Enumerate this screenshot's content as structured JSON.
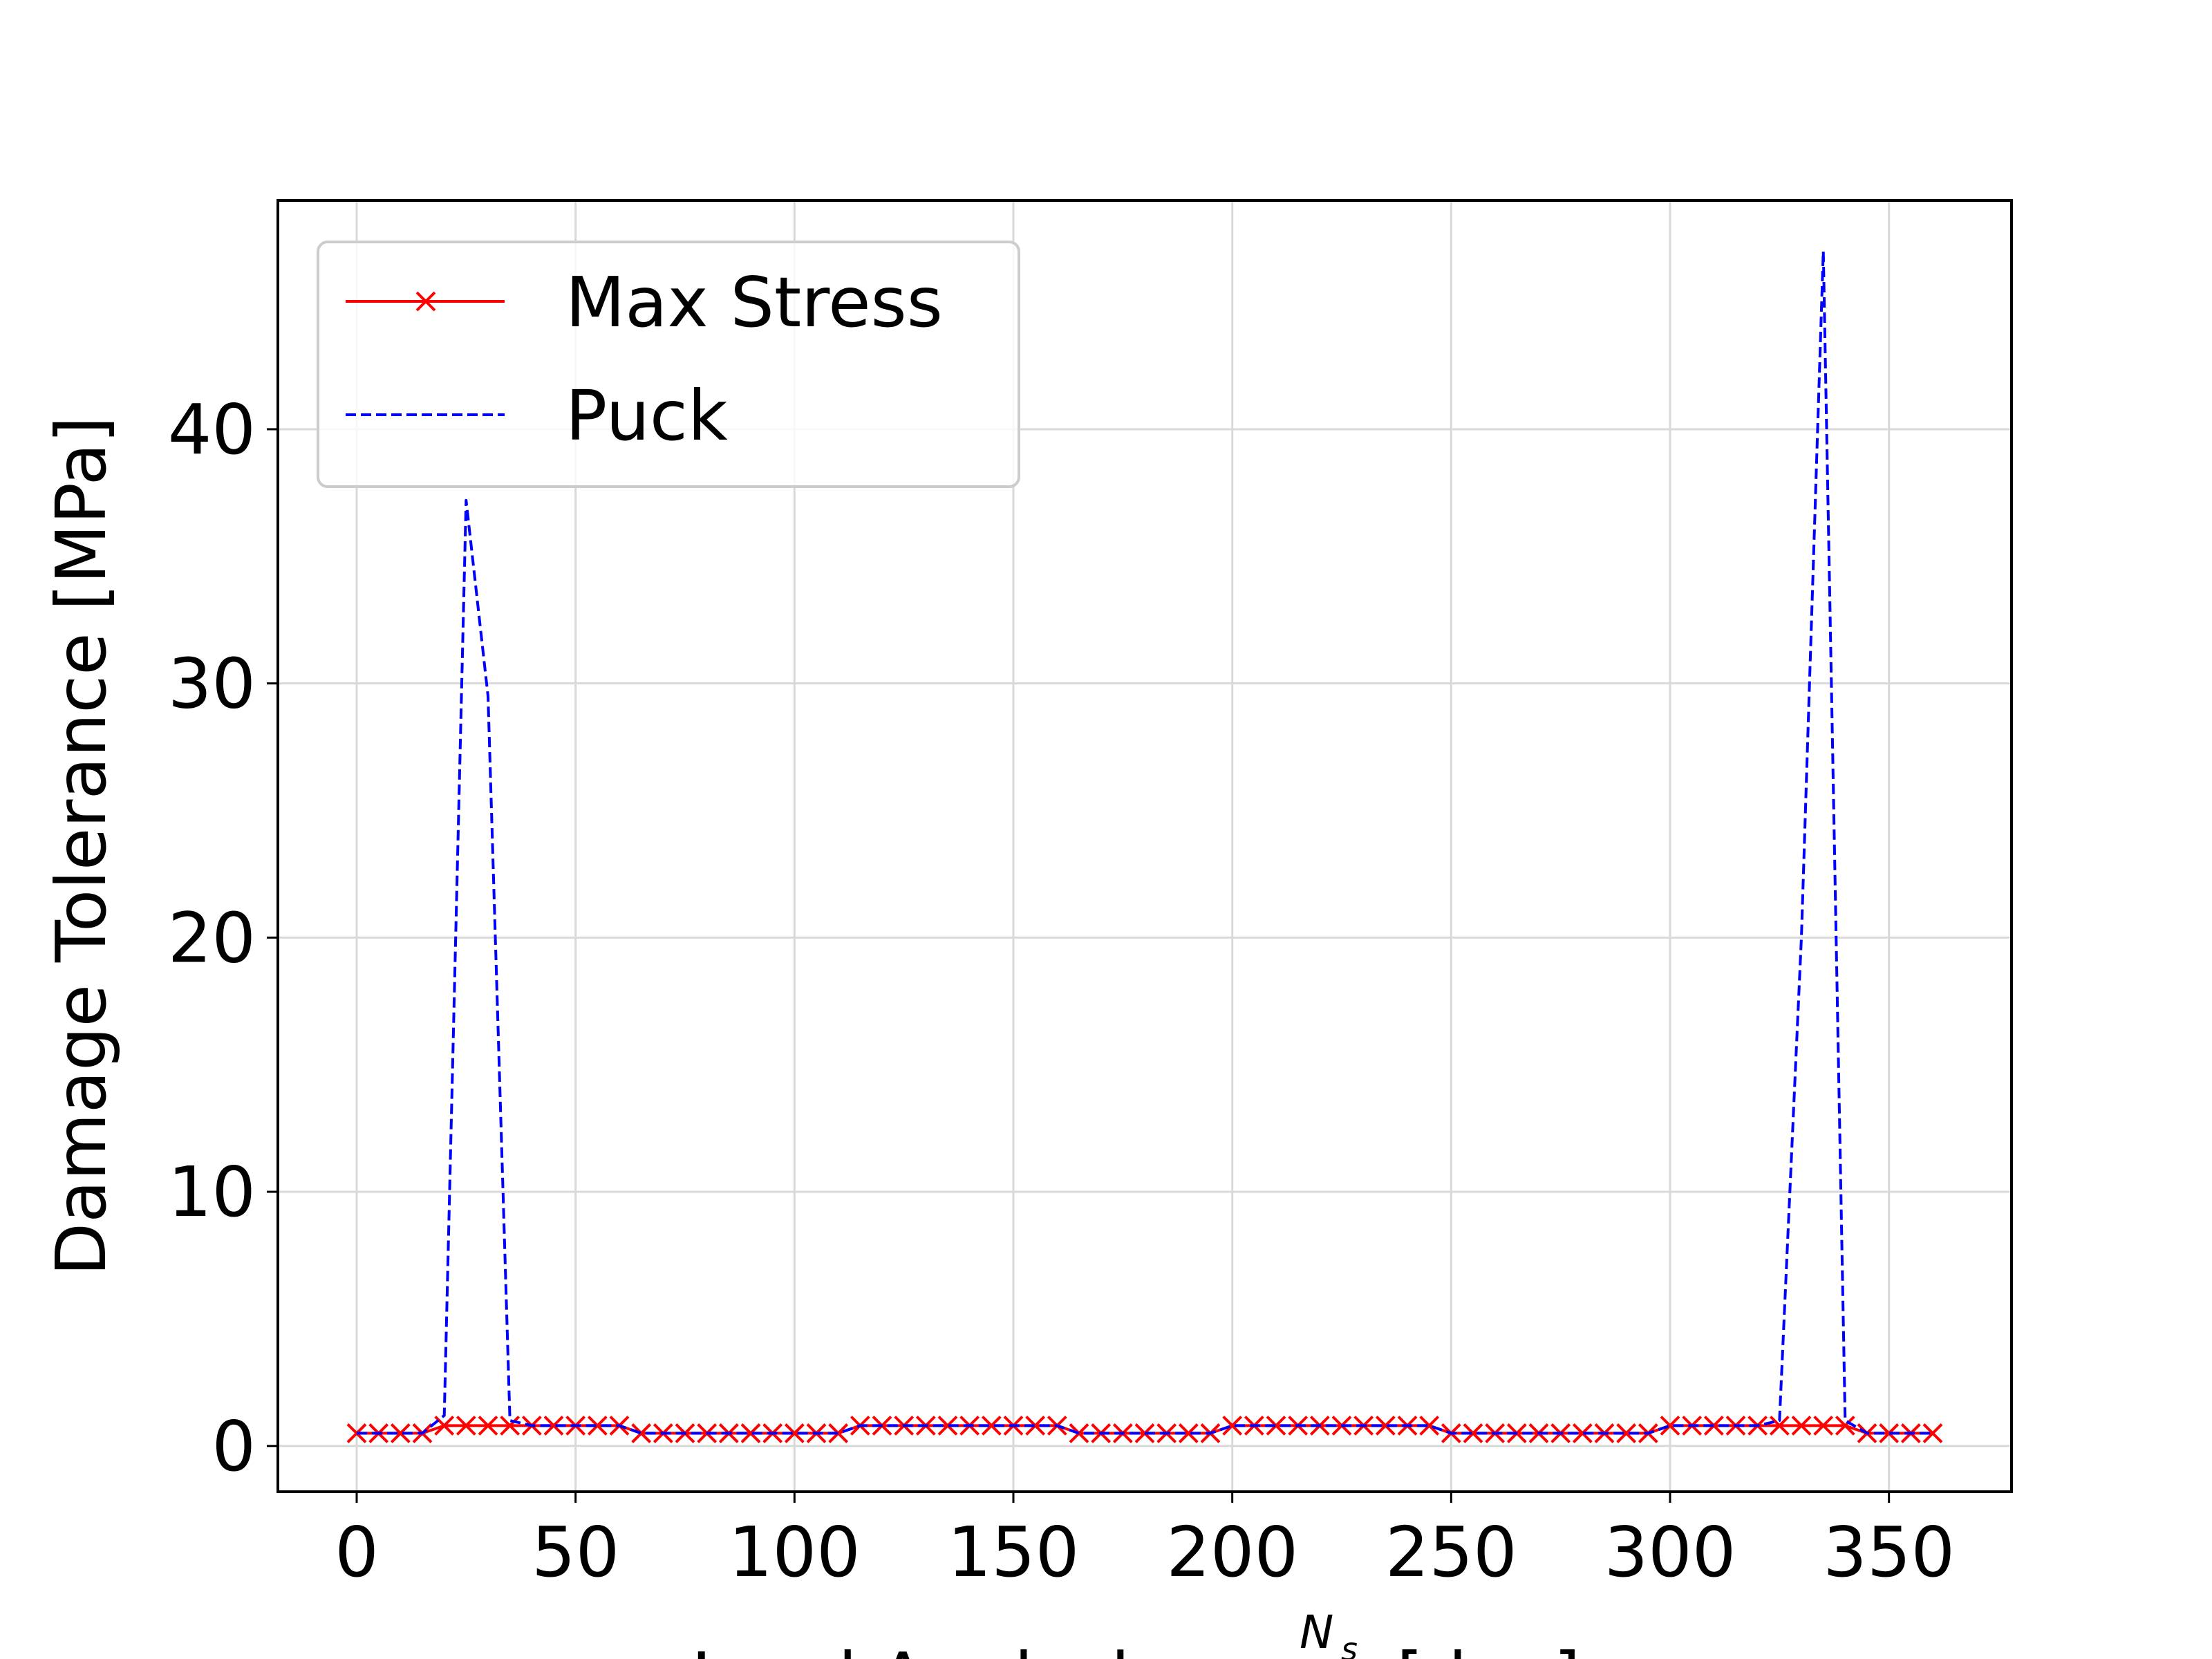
{
  "chart_data": {
    "type": "line",
    "xlabel": "Load Angle ϕ = ",
    "xlabel_fraction_numerator": "N",
    "xlabel_fraction_subscript": "s",
    "xlabel_unit": "[deg]",
    "ylabel": "Damage Tolerance [MPa]",
    "xlim": [
      -18,
      378
    ],
    "ylim": [
      -1.8,
      49.0
    ],
    "xticks": [
      0,
      50,
      100,
      150,
      200,
      250,
      300,
      350
    ],
    "yticks": [
      0,
      10,
      20,
      30,
      40
    ],
    "grid": true,
    "legend_position": "upper-left",
    "series": [
      {
        "name": "Max Stress",
        "color": "#ff0000",
        "line_style": "solid",
        "marker": "x",
        "x": [
          0,
          5,
          10,
          15,
          20,
          25,
          30,
          35,
          40,
          45,
          50,
          55,
          60,
          65,
          70,
          75,
          80,
          85,
          90,
          95,
          100,
          105,
          110,
          115,
          120,
          125,
          130,
          135,
          140,
          145,
          150,
          155,
          160,
          165,
          170,
          175,
          180,
          185,
          190,
          195,
          200,
          205,
          210,
          215,
          220,
          225,
          230,
          235,
          240,
          245,
          250,
          255,
          260,
          265,
          270,
          275,
          280,
          285,
          290,
          295,
          300,
          305,
          310,
          315,
          320,
          325,
          330,
          335,
          340,
          345,
          350,
          355,
          360
        ],
        "values": [
          0.5,
          0.5,
          0.5,
          0.5,
          0.8,
          0.8,
          0.8,
          0.8,
          0.8,
          0.8,
          0.8,
          0.8,
          0.8,
          0.5,
          0.5,
          0.5,
          0.5,
          0.5,
          0.5,
          0.5,
          0.5,
          0.5,
          0.5,
          0.8,
          0.8,
          0.8,
          0.8,
          0.8,
          0.8,
          0.8,
          0.8,
          0.8,
          0.8,
          0.5,
          0.5,
          0.5,
          0.5,
          0.5,
          0.5,
          0.5,
          0.8,
          0.8,
          0.8,
          0.8,
          0.8,
          0.8,
          0.8,
          0.8,
          0.8,
          0.8,
          0.5,
          0.5,
          0.5,
          0.5,
          0.5,
          0.5,
          0.5,
          0.5,
          0.5,
          0.5,
          0.8,
          0.8,
          0.8,
          0.8,
          0.8,
          0.8,
          0.8,
          0.8,
          0.8,
          0.5,
          0.5,
          0.5,
          0.5
        ]
      },
      {
        "name": "Puck",
        "color": "#0000ff",
        "line_style": "dashed",
        "marker": "none",
        "x": [
          0,
          5,
          10,
          15,
          20,
          25,
          30,
          35,
          40,
          45,
          50,
          55,
          60,
          65,
          70,
          75,
          80,
          85,
          90,
          95,
          100,
          105,
          110,
          115,
          120,
          125,
          130,
          135,
          140,
          145,
          150,
          155,
          160,
          165,
          170,
          175,
          180,
          185,
          190,
          195,
          200,
          205,
          210,
          215,
          220,
          225,
          230,
          235,
          240,
          245,
          250,
          255,
          260,
          265,
          270,
          275,
          280,
          285,
          290,
          295,
          300,
          305,
          310,
          315,
          320,
          325,
          330,
          335,
          340,
          345,
          350,
          355,
          360
        ],
        "values": [
          0.5,
          0.5,
          0.5,
          0.5,
          1.2,
          37.2,
          29.5,
          1.0,
          0.8,
          0.8,
          0.8,
          0.8,
          0.8,
          0.5,
          0.5,
          0.5,
          0.5,
          0.5,
          0.5,
          0.5,
          0.5,
          0.5,
          0.5,
          0.8,
          0.8,
          0.8,
          0.8,
          0.8,
          0.8,
          0.8,
          0.8,
          0.8,
          0.8,
          0.5,
          0.5,
          0.5,
          0.5,
          0.5,
          0.5,
          0.5,
          0.8,
          0.8,
          0.8,
          0.8,
          0.8,
          0.8,
          0.8,
          0.8,
          0.8,
          0.8,
          0.5,
          0.5,
          0.5,
          0.5,
          0.5,
          0.5,
          0.5,
          0.5,
          0.5,
          0.5,
          0.8,
          0.8,
          0.8,
          0.8,
          0.8,
          1.0,
          20.0,
          47.0,
          1.0,
          0.5,
          0.5,
          0.5,
          0.5
        ]
      }
    ]
  }
}
